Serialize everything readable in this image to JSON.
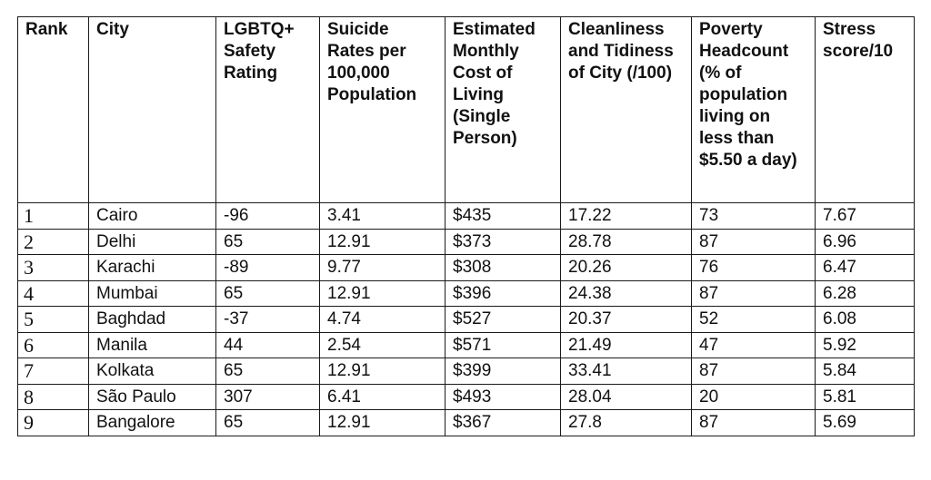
{
  "table": {
    "headers": [
      "Rank",
      "City",
      "LGBTQ+ Safety Rating",
      "Suicide Rates per 100,000 Population",
      "Estimated Monthly Cost of Living (Single Person)",
      "Cleanliness and Tidiness of City (/100)",
      "Poverty Headcount (% of population living on less than $5.50 a day)",
      "Stress score/10"
    ],
    "rows": [
      [
        "1",
        "Cairo",
        "-96",
        "3.41",
        "$435",
        "17.22",
        "73",
        "7.67"
      ],
      [
        "2",
        "Delhi",
        "65",
        "12.91",
        "$373",
        "28.78",
        "87",
        "6.96"
      ],
      [
        "3",
        "Karachi",
        "-89",
        "9.77",
        "$308",
        "20.26",
        "76",
        "6.47"
      ],
      [
        "4",
        "Mumbai",
        "65",
        "12.91",
        "$396",
        "24.38",
        "87",
        "6.28"
      ],
      [
        "5",
        "Baghdad",
        "-37",
        "4.74",
        "$527",
        "20.37",
        "52",
        "6.08"
      ],
      [
        "6",
        "Manila",
        "44",
        "2.54",
        "$571",
        "21.49",
        "47",
        "5.92"
      ],
      [
        "7",
        "Kolkata",
        "65",
        "12.91",
        "$399",
        "33.41",
        "87",
        "5.84"
      ],
      [
        "8",
        "São Paulo",
        "307",
        "6.41",
        "$493",
        "28.04",
        "20",
        "5.81"
      ],
      [
        "9",
        "Bangalore",
        "65",
        "12.91",
        "$367",
        "27.8",
        "87",
        "5.69"
      ]
    ]
  }
}
